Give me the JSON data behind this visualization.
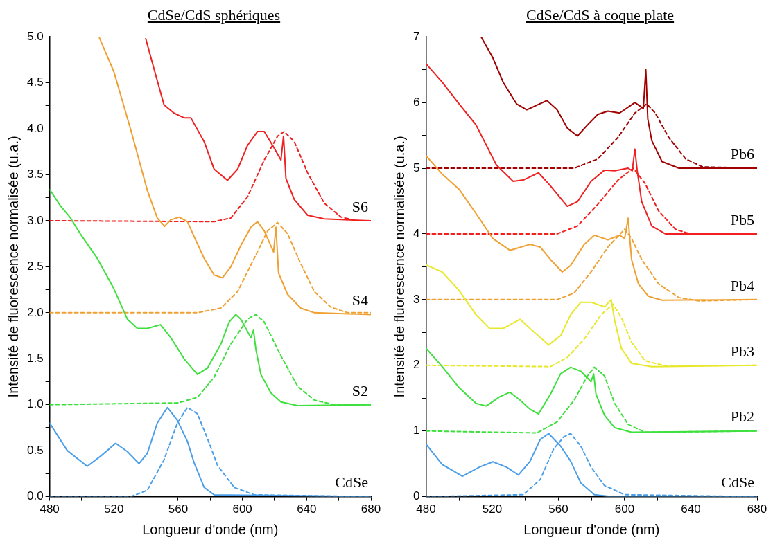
{
  "chart_data": [
    {
      "type": "line",
      "title": "CdSe/CdS sphériques",
      "xlabel": "Longueur d'onde (nm)",
      "ylabel": "Intensité de fluorescence normalisée (u.a.)",
      "marker": "none",
      "xlim": [
        480,
        680
      ],
      "xticks": [
        480,
        {
          "value": 500,
          "label": null
        },
        520,
        {
          "value": 540,
          "label": null
        },
        560,
        {
          "value": 580,
          "label": null
        },
        600,
        {
          "value": 620,
          "label": null
        },
        640,
        {
          "value": 660,
          "label": null
        },
        680
      ],
      "ylim": [
        0,
        5
      ],
      "yticks": [
        {
          "value": 0,
          "label": "0.0"
        },
        {
          "value": 0.25,
          "label": null
        },
        0.5,
        {
          "value": 0.75,
          "label": null
        },
        {
          "value": 1,
          "label": "1.0"
        },
        {
          "value": 1.25,
          "label": null
        },
        1.5,
        {
          "value": 1.75,
          "label": null
        },
        {
          "value": 2,
          "label": "2.0"
        },
        {
          "value": 2.25,
          "label": null
        },
        2.5,
        {
          "value": 2.75,
          "label": null
        },
        {
          "value": 3,
          "label": "3.0"
        },
        {
          "value": 3.25,
          "label": null
        },
        3.5,
        {
          "value": 3.75,
          "label": null
        },
        {
          "value": 4,
          "label": "4.0"
        },
        {
          "value": 4.25,
          "label": null
        },
        4.5,
        {
          "value": 4.75,
          "label": null
        },
        {
          "value": 5,
          "label": "5.0"
        }
      ],
      "series": [
        {
          "name": "CdSe",
          "color": "#4a9eea",
          "line_style": "solid",
          "x": [
            480,
            491,
            503.4,
            511.7,
            521.1,
            528.4,
            535.6,
            540.8,
            547,
            553.3,
            559.5,
            565.8,
            569.9,
            576.2,
            582.4,
            680
          ],
          "values": [
            0.8,
            0.5,
            0.33,
            0.44,
            0.58,
            0.49,
            0.36,
            0.47,
            0.8,
            0.97,
            0.83,
            0.6,
            0.37,
            0.1,
            0.02,
            0
          ]
        },
        {
          "color": "#4a9eea",
          "line_style": "dashed",
          "x": [
            480,
            530.5,
            540.8,
            551.2,
            559.5,
            565.8,
            572,
            578.3,
            584.5,
            594.9,
            607.3,
            680
          ],
          "values": [
            0,
            0,
            0.07,
            0.4,
            0.8,
            0.97,
            0.9,
            0.63,
            0.34,
            0.1,
            0.02,
            0
          ]
        },
        {
          "name": "S2",
          "color": "#3ee03e",
          "line_style": "solid",
          "x": [
            480,
            486.8,
            493,
            499,
            509.7,
            520,
            528.4,
            534.6,
            540.8,
            549,
            555.4,
            563.7,
            572,
            578.3,
            586.6,
            591.8,
            595.9,
            599,
            605.3,
            606.9,
            608.4,
            611.5,
            617.7,
            624,
            634.4,
            680
          ],
          "values": [
            3.34,
            3.16,
            3.03,
            2.86,
            2.59,
            2.26,
            1.93,
            1.83,
            1.83,
            1.87,
            1.73,
            1.5,
            1.33,
            1.4,
            1.66,
            1.9,
            1.98,
            1.93,
            1.73,
            1.81,
            1.6,
            1.33,
            1.13,
            1.03,
            0.99,
            1
          ]
        },
        {
          "color": "#3ee03e",
          "line_style": "dashed",
          "x": [
            480,
            560,
            572,
            582.4,
            592.8,
            603.2,
            608.4,
            613.6,
            624,
            634.4,
            644.8,
            657.2,
            680
          ],
          "values": [
            1,
            1.02,
            1.08,
            1.3,
            1.66,
            1.93,
            1.98,
            1.9,
            1.53,
            1.2,
            1.05,
            1,
            1
          ]
        },
        {
          "name": "S4",
          "color": "#f0a030",
          "line_style": "solid",
          "x": [
            510.7,
            520,
            530.5,
            540.8,
            547,
            551.6,
            555.4,
            560.6,
            565.8,
            569.9,
            576.2,
            582.4,
            587.6,
            592.8,
            599,
            605.3,
            609.4,
            613.6,
            619.4,
            620.9,
            622.5,
            628.1,
            636.4,
            644.8,
            680
          ],
          "values": [
            5,
            4.62,
            3.99,
            3.33,
            3.03,
            2.94,
            3.01,
            3.04,
            2.99,
            2.83,
            2.59,
            2.41,
            2.38,
            2.5,
            2.73,
            2.93,
            2.99,
            2.89,
            2.66,
            2.93,
            2.43,
            2.2,
            2.05,
            2,
            1.98
          ]
        },
        {
          "color": "#f0a030",
          "line_style": "dashed",
          "x": [
            480,
            572,
            586.6,
            597,
            607.3,
            615.7,
            621.9,
            628.1,
            636.4,
            644.8,
            655.1,
            665.5,
            680
          ],
          "values": [
            2,
            2,
            2.05,
            2.23,
            2.59,
            2.89,
            2.98,
            2.86,
            2.53,
            2.23,
            2.06,
            2,
            2
          ]
        },
        {
          "name": "S6",
          "color": "#f02020",
          "line_style": "solid",
          "x": [
            539.8,
            545,
            551.2,
            557.5,
            563.7,
            567.9,
            576.2,
            582.4,
            590.7,
            597,
            603.2,
            609.4,
            613.6,
            619.8,
            624,
            625.6,
            627.1,
            632.3,
            640.6,
            651,
            680
          ],
          "values": [
            4.98,
            4.65,
            4.26,
            4.17,
            4.12,
            4.12,
            3.86,
            3.56,
            3.44,
            3.56,
            3.82,
            3.97,
            3.97,
            3.79,
            3.66,
            3.92,
            3.46,
            3.23,
            3.06,
            3.02,
            3
          ]
        },
        {
          "color": "#f02020",
          "line_style": "dashed",
          "x": [
            480,
            582.4,
            592.8,
            603.2,
            613.6,
            621.9,
            626,
            632.3,
            640.6,
            651,
            661.4,
            671.8,
            680
          ],
          "values": [
            3,
            2.99,
            3.03,
            3.26,
            3.66,
            3.92,
            3.97,
            3.86,
            3.52,
            3.19,
            3.04,
            3,
            3
          ]
        }
      ]
    },
    {
      "type": "line",
      "title": "CdSe/CdS à coque plate",
      "xlabel": "Longueur d'onde (nm)",
      "ylabel": "Intensité de fluorescence normalisée (u.a.)",
      "marker": "none",
      "xlim": [
        480,
        680
      ],
      "xticks": [
        480,
        {
          "value": 500,
          "label": null
        },
        520,
        {
          "value": 540,
          "label": null
        },
        560,
        {
          "value": 580,
          "label": null
        },
        600,
        {
          "value": 620,
          "label": null
        },
        640,
        {
          "value": 660,
          "label": null
        },
        680
      ],
      "ylim": [
        0,
        7
      ],
      "yticks": [
        0,
        {
          "value": 0.5,
          "label": null
        },
        1,
        {
          "value": 1.5,
          "label": null
        },
        2,
        {
          "value": 2.5,
          "label": null
        },
        3,
        {
          "value": 3.5,
          "label": null
        },
        4,
        {
          "value": 4.5,
          "label": null
        },
        5,
        {
          "value": 5.5,
          "label": null
        },
        6,
        {
          "value": 6.5,
          "label": null
        },
        7
      ],
      "series": [
        {
          "name": "CdSe",
          "color": "#4a9eea",
          "line_style": "solid",
          "x": [
            480,
            489.8,
            502,
            512.3,
            520.4,
            528.6,
            535.8,
            542.9,
            549,
            554.1,
            561.3,
            567.4,
            573.5,
            581.7,
            592,
            680
          ],
          "values": [
            0.8,
            0.49,
            0.31,
            0.45,
            0.53,
            0.45,
            0.33,
            0.54,
            0.87,
            0.96,
            0.77,
            0.54,
            0.21,
            0.03,
            0,
            0
          ]
        },
        {
          "color": "#4a9eea",
          "line_style": "dashed",
          "x": [
            480,
            538.8,
            549,
            557.2,
            563.3,
            567.4,
            573.5,
            579.7,
            587.8,
            600,
            680
          ],
          "values": [
            0,
            0.03,
            0.26,
            0.73,
            0.91,
            0.96,
            0.77,
            0.45,
            0.17,
            0.03,
            0
          ]
        },
        {
          "name": "Pb2",
          "color": "#3ee03e",
          "line_style": "solid",
          "x": [
            480,
            489.8,
            500,
            510.2,
            516.4,
            524.5,
            530.7,
            536.8,
            542.9,
            548,
            555.2,
            561.3,
            567.4,
            573.5,
            579.7,
            581.3,
            582.7,
            587.8,
            594,
            604.2,
            680
          ],
          "values": [
            2.26,
            1.98,
            1.66,
            1.42,
            1.38,
            1.52,
            1.59,
            1.47,
            1.33,
            1.26,
            1.56,
            1.87,
            1.97,
            1.91,
            1.75,
            1.87,
            1.56,
            1.24,
            1.05,
            0.98,
            1
          ]
        },
        {
          "color": "#3ee03e",
          "line_style": "dashed",
          "x": [
            480,
            547,
            559.3,
            569.5,
            577.6,
            581.7,
            587.8,
            594,
            602.1,
            612.4,
            680
          ],
          "values": [
            1,
            0.97,
            1.14,
            1.47,
            1.84,
            1.97,
            1.84,
            1.42,
            1.1,
            0.98,
            1
          ]
        },
        {
          "name": "Pb3",
          "color": "#e8e82a",
          "line_style": "solid",
          "x": [
            480,
            489.8,
            500,
            510.2,
            518.4,
            526.6,
            536.8,
            542.9,
            554.1,
            561.3,
            567.4,
            573.5,
            579.7,
            587.8,
            591.9,
            594,
            598,
            604.2,
            616.4,
            680
          ],
          "values": [
            3.53,
            3.42,
            3.14,
            2.77,
            2.56,
            2.56,
            2.7,
            2.56,
            2.31,
            2.45,
            2.77,
            2.96,
            2.96,
            2.89,
            3,
            2.68,
            2.26,
            2.03,
            1.98,
            2
          ]
        },
        {
          "color": "#e8e82a",
          "line_style": "dashed",
          "x": [
            480,
            555.2,
            565.4,
            575.6,
            585.8,
            593,
            598,
            604.2,
            612.3,
            624.6,
            680
          ],
          "values": [
            2,
            1.98,
            2.12,
            2.4,
            2.77,
            2.93,
            2.73,
            2.35,
            2.07,
            1.99,
            2
          ]
        },
        {
          "name": "Pb4",
          "color": "#f0a030",
          "line_style": "solid",
          "x": [
            480,
            489.8,
            500,
            510.2,
            520.4,
            530.7,
            542.9,
            549,
            555.2,
            562.3,
            567.4,
            575.6,
            581.7,
            589.9,
            597,
            600,
            602.1,
            604.2,
            608.3,
            614.4,
            622.6,
            680
          ],
          "values": [
            5.19,
            4.91,
            4.68,
            4.31,
            3.93,
            3.75,
            3.84,
            3.8,
            3.61,
            3.42,
            3.52,
            3.84,
            3.98,
            3.91,
            3.98,
            3.93,
            4.24,
            3.61,
            3.24,
            3.05,
            2.99,
            3
          ]
        },
        {
          "color": "#f0a030",
          "line_style": "dashed",
          "x": [
            480,
            559.2,
            569.5,
            579.7,
            589.9,
            600,
            604.2,
            610.3,
            620.5,
            632.8,
            645,
            680
          ],
          "values": [
            3,
            3,
            3.1,
            3.42,
            3.8,
            4.07,
            3.93,
            3.61,
            3.24,
            3.03,
            2.98,
            3
          ]
        },
        {
          "name": "Pb5",
          "color": "#f02020",
          "line_style": "solid",
          "x": [
            480,
            489.8,
            500,
            510.2,
            522.5,
            532.7,
            538.8,
            548,
            555.2,
            565.4,
            571.5,
            579.7,
            587.8,
            594,
            602.1,
            604.6,
            606.2,
            607.6,
            610.3,
            616.4,
            624.6,
            680
          ],
          "values": [
            6.59,
            6.31,
            5.98,
            5.66,
            5.05,
            4.8,
            4.82,
            4.93,
            4.73,
            4.42,
            4.49,
            4.8,
            4.97,
            4.96,
            5,
            4.96,
            5.29,
            4.96,
            4.49,
            4.12,
            4,
            4
          ]
        },
        {
          "color": "#f02020",
          "line_style": "dashed",
          "x": [
            480,
            559.2,
            571.5,
            583.8,
            596,
            605.2,
            612.3,
            620.5,
            630.7,
            640.9,
            680
          ],
          "values": [
            4,
            4,
            4.12,
            4.45,
            4.82,
            5,
            4.77,
            4.35,
            4.07,
            3.99,
            4
          ]
        },
        {
          "name": "Pb6",
          "color": "#a00000",
          "line_style": "solid",
          "x": [
            513.3,
            520.4,
            526.6,
            534.7,
            540.9,
            547,
            553.1,
            559.2,
            565.4,
            571.5,
            577.6,
            583.8,
            589.9,
            597,
            606.2,
            611.3,
            612.8,
            614,
            616.4,
            622.6,
            632.8,
            680
          ],
          "values": [
            7,
            6.68,
            6.31,
            5.98,
            5.89,
            5.96,
            6.03,
            5.89,
            5.61,
            5.49,
            5.66,
            5.82,
            5.87,
            5.84,
            6,
            5.91,
            6.5,
            5.75,
            5.42,
            5.1,
            5,
            5
          ]
        },
        {
          "color": "#a00000",
          "line_style": "dashed",
          "x": [
            480,
            569.5,
            583.8,
            596,
            606.2,
            613.3,
            618.5,
            626.6,
            636.9,
            647.1,
            680
          ],
          "values": [
            5,
            5,
            5.14,
            5.47,
            5.84,
            5.98,
            5.84,
            5.47,
            5.14,
            5.02,
            5
          ]
        }
      ]
    }
  ]
}
